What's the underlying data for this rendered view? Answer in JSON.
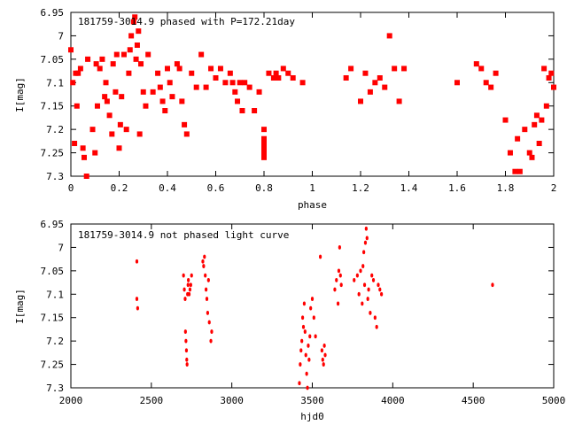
{
  "chart_data": [
    {
      "type": "scatter",
      "title": "181759-3014.9 phased with P=172.21day",
      "xlabel": "phase",
      "ylabel": "I[mag]",
      "xlim": [
        0,
        2
      ],
      "ylim": [
        6.95,
        7.3
      ],
      "y_inverted": true,
      "xticks": [
        0,
        0.2,
        0.4,
        0.6,
        0.8,
        1,
        1.2,
        1.4,
        1.6,
        1.8,
        2
      ],
      "xtick_labels": [
        "0",
        "0.2",
        "0.4",
        "0.6",
        "0.8",
        "1",
        "1.2",
        "1.4",
        "1.6",
        "1.8",
        "2"
      ],
      "yticks": [
        6.95,
        7,
        7.05,
        7.1,
        7.15,
        7.2,
        7.25,
        7.3
      ],
      "ytick_labels": [
        "6.95",
        "7",
        "7.05",
        "7.1",
        "7.15",
        "7.2",
        "7.25",
        "7.3"
      ],
      "grid": false,
      "marker_color": "#ff0000",
      "x": [
        0.0,
        0.008,
        0.015,
        0.02,
        0.025,
        0.03,
        0.04,
        0.05,
        0.055,
        0.065,
        0.07,
        0.09,
        0.1,
        0.105,
        0.11,
        0.12,
        0.13,
        0.14,
        0.145,
        0.15,
        0.16,
        0.17,
        0.175,
        0.185,
        0.19,
        0.2,
        0.205,
        0.21,
        0.22,
        0.23,
        0.24,
        0.245,
        0.25,
        0.26,
        0.265,
        0.27,
        0.275,
        0.28,
        0.285,
        0.29,
        0.3,
        0.31,
        0.32,
        0.34,
        0.36,
        0.37,
        0.38,
        0.39,
        0.4,
        0.41,
        0.42,
        0.44,
        0.45,
        0.46,
        0.47,
        0.48,
        0.5,
        0.52,
        0.54,
        0.56,
        0.58,
        0.6,
        0.62,
        0.64,
        0.66,
        0.67,
        0.68,
        0.69,
        0.7,
        0.71,
        0.72,
        0.74,
        0.76,
        0.78,
        0.8,
        0.8,
        0.8,
        0.8,
        0.8,
        0.8,
        0.82,
        0.84,
        0.85,
        0.86,
        0.88,
        0.9,
        0.92,
        0.96,
        1.14,
        1.16,
        1.2,
        1.22,
        1.24,
        1.26,
        1.28,
        1.3,
        1.32,
        1.34,
        1.36,
        1.38,
        1.6,
        1.68,
        1.7,
        1.72,
        1.74,
        1.76,
        1.8,
        1.82,
        1.84,
        1.85,
        1.86,
        1.88,
        1.9,
        1.91,
        1.92,
        1.93,
        1.94,
        1.95,
        1.96,
        1.97,
        1.98,
        1.99,
        2.0
      ],
      "y": [
        7.03,
        7.1,
        7.23,
        7.08,
        7.15,
        7.08,
        7.07,
        7.24,
        7.26,
        7.3,
        7.05,
        7.2,
        7.25,
        7.06,
        7.15,
        7.07,
        7.05,
        7.13,
        7.1,
        7.14,
        7.17,
        7.21,
        7.06,
        7.12,
        7.04,
        7.24,
        7.19,
        7.13,
        7.04,
        7.2,
        7.08,
        7.03,
        7.0,
        6.97,
        6.96,
        7.05,
        7.02,
        6.99,
        7.21,
        7.06,
        7.12,
        7.15,
        7.04,
        7.12,
        7.08,
        7.11,
        7.14,
        7.16,
        7.07,
        7.1,
        7.13,
        7.06,
        7.07,
        7.14,
        7.19,
        7.21,
        7.08,
        7.11,
        7.04,
        7.11,
        7.07,
        7.09,
        7.07,
        7.1,
        7.08,
        7.1,
        7.12,
        7.14,
        7.1,
        7.16,
        7.1,
        7.11,
        7.16,
        7.12,
        7.2,
        7.22,
        7.23,
        7.24,
        7.25,
        7.26,
        7.08,
        7.09,
        7.08,
        7.09,
        7.07,
        7.08,
        7.09,
        7.1,
        7.09,
        7.07,
        7.14,
        7.08,
        7.12,
        7.1,
        7.09,
        7.11,
        7.0,
        7.07,
        7.14,
        7.07,
        7.1,
        7.06,
        7.07,
        7.1,
        7.11,
        7.08,
        7.18,
        7.25,
        7.29,
        7.22,
        7.29,
        7.2,
        7.25,
        7.26,
        7.19,
        7.17,
        7.23,
        7.18,
        7.07,
        7.15,
        7.09,
        7.08,
        7.11
      ],
      "series": [
        {
          "type": "hline",
          "x": [
            0.01,
            0.02
          ],
          "y": [
            6.955,
            6.955
          ]
        }
      ]
    },
    {
      "type": "scatter",
      "title": "181759-3014.9 not phased light curve",
      "xlabel": "hjd0",
      "ylabel": "I[mag]",
      "xlim": [
        2000,
        5000
      ],
      "ylim": [
        6.95,
        7.3
      ],
      "y_inverted": true,
      "xticks": [
        2000,
        2500,
        3000,
        3500,
        4000,
        4500,
        5000
      ],
      "xtick_labels": [
        "2000",
        "2500",
        "3000",
        "3500",
        "4000",
        "4500",
        "5000"
      ],
      "yticks": [
        6.95,
        7,
        7.05,
        7.1,
        7.15,
        7.2,
        7.25,
        7.3
      ],
      "ytick_labels": [
        "6.95",
        "7",
        "7.05",
        "7.1",
        "7.15",
        "7.2",
        "7.25",
        "7.3"
      ],
      "grid": false,
      "marker_color": "#ff0000",
      "x": [
        2410,
        2410,
        2415,
        2700,
        2705,
        2710,
        2712,
        2715,
        2718,
        2720,
        2722,
        2725,
        2728,
        2730,
        2735,
        2740,
        2745,
        2750,
        2820,
        2825,
        2830,
        2835,
        2840,
        2845,
        2850,
        2855,
        2860,
        2870,
        2875,
        3420,
        3425,
        3430,
        3435,
        3440,
        3445,
        3450,
        3455,
        3460,
        3465,
        3470,
        3475,
        3480,
        3485,
        3490,
        3500,
        3510,
        3520,
        3550,
        3560,
        3565,
        3570,
        3575,
        3580,
        3640,
        3650,
        3660,
        3665,
        3670,
        3675,
        3680,
        3760,
        3780,
        3790,
        3800,
        3810,
        3815,
        3820,
        3825,
        3830,
        3835,
        3840,
        3845,
        3850,
        3860,
        3870,
        3880,
        3890,
        3900,
        3910,
        3920,
        3930,
        4620
      ],
      "y": [
        7.03,
        7.11,
        7.13,
        7.06,
        7.09,
        7.11,
        7.18,
        7.2,
        7.22,
        7.24,
        7.25,
        7.1,
        7.08,
        7.07,
        7.1,
        7.09,
        7.08,
        7.06,
        7.03,
        7.04,
        7.02,
        7.06,
        7.09,
        7.11,
        7.14,
        7.07,
        7.16,
        7.2,
        7.18,
        7.29,
        7.25,
        7.22,
        7.2,
        7.15,
        7.17,
        7.12,
        7.18,
        7.23,
        7.27,
        7.3,
        7.21,
        7.24,
        7.19,
        7.13,
        7.11,
        7.15,
        7.19,
        7.02,
        7.22,
        7.24,
        7.25,
        7.21,
        7.23,
        7.09,
        7.07,
        7.12,
        7.05,
        7.0,
        7.06,
        7.08,
        7.07,
        7.06,
        7.1,
        7.05,
        7.12,
        7.04,
        7.01,
        7.08,
        6.99,
        6.96,
        6.98,
        7.11,
        7.09,
        7.14,
        7.06,
        7.07,
        7.15,
        7.17,
        7.08,
        7.09,
        7.1,
        7.08
      ]
    }
  ]
}
